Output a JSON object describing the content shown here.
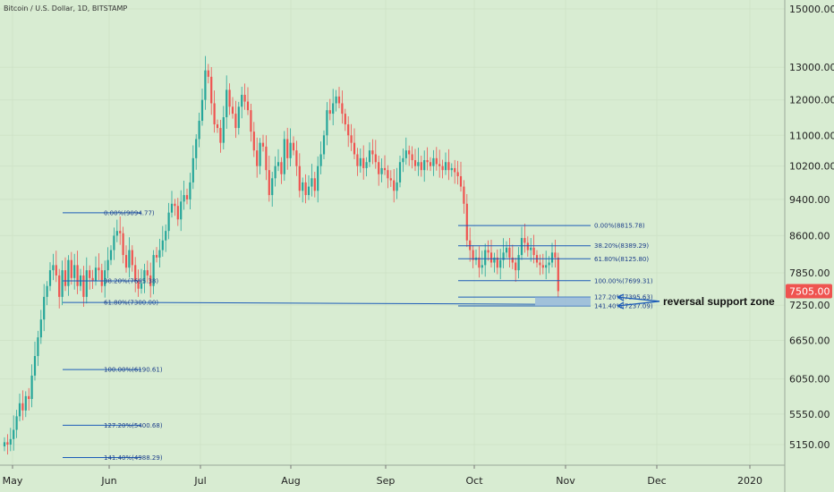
{
  "chart_data": {
    "type": "candlestick",
    "title": "Bitcoin / U.S. Dollar, 1D, BITSTAMP",
    "x_labels": [
      "May",
      "Jun",
      "Jul",
      "Aug",
      "Sep",
      "Oct",
      "Nov",
      "Dec",
      "2020"
    ],
    "y_ticks": [
      "15000.00",
      "13000.00",
      "12000.00",
      "11000.00",
      "10200.00",
      "9400.00",
      "8600.00",
      "7850.00",
      "7250.00",
      "6650.00",
      "6050.00",
      "5550.00",
      "5150.00"
    ],
    "y_scale": "log",
    "y_range": [
      4900,
      15500
    ],
    "last_price": "7505.00",
    "annotation": "reversal support zone",
    "colors": {
      "up": "#26a69a",
      "down": "#ef5350",
      "fib": "#1c5bb8",
      "zone": "#8fb3dc",
      "price_tag": "#ef5350"
    },
    "fib_sets": [
      {
        "levels": [
          {
            "label": "0.00%(9094.77)",
            "price": 9094.77
          },
          {
            "label": "38.20%(7695.38)",
            "price": 7695.38
          },
          {
            "label": "61.80%(7300.00)",
            "price": 7300.0
          },
          {
            "label": "100.00%(6190.61)",
            "price": 6190.61
          },
          {
            "label": "127.20%(5400.68)",
            "price": 5400.68
          },
          {
            "label": "141.40%(4988.29)",
            "price": 4988.29
          }
        ]
      },
      {
        "levels": [
          {
            "label": "0.00%(8815.78)",
            "price": 8815.78
          },
          {
            "label": "38.20%(8389.29)",
            "price": 8389.29
          },
          {
            "label": "61.80%(8125.80)",
            "price": 8125.8
          },
          {
            "label": "100.00%(7699.31)",
            "price": 7699.31
          },
          {
            "label": "127.20%(7395.63)",
            "price": 7395.63
          },
          {
            "label": "141.40%(7237.09)",
            "price": 7237.09
          }
        ]
      }
    ],
    "candles_close": [
      5180,
      5150,
      5220,
      5340,
      5520,
      5700,
      5600,
      5800,
      5760,
      6100,
      6400,
      6700,
      7000,
      7400,
      7600,
      7900,
      8000,
      7800,
      7400,
      7900,
      7600,
      8100,
      7750,
      8000,
      7600,
      7800,
      7400,
      7900,
      7750,
      7700,
      7950,
      7900,
      7600,
      7900,
      8100,
      8300,
      8600,
      8700,
      8650,
      8200,
      7950,
      8300,
      8000,
      7700,
      7550,
      7650,
      7900,
      7800,
      7600,
      8200,
      8150,
      8300,
      8500,
      8700,
      9100,
      9300,
      9250,
      8950,
      9350,
      9500,
      9400,
      9800,
      10400,
      10900,
      11400,
      12000,
      12900,
      12700,
      11900,
      11300,
      11200,
      10800,
      11500,
      12300,
      11800,
      11600,
      11200,
      11800,
      12150,
      11950,
      11700,
      11100,
      10600,
      10200,
      10800,
      10700,
      10100,
      9500,
      9900,
      10200,
      10300,
      10000,
      10900,
      10400,
      10800,
      10600,
      10200,
      9600,
      9800,
      9500,
      9700,
      9900,
      9600,
      10200,
      10500,
      11000,
      11700,
      11600,
      11900,
      12100,
      11900,
      11600,
      11300,
      11000,
      10800,
      10500,
      10200,
      10400,
      10150,
      10300,
      10600,
      10500,
      10300,
      10000,
      10150,
      10100,
      9900,
      9850,
      9600,
      9800,
      10300,
      10400,
      10600,
      10500,
      10350,
      10200,
      10300,
      10100,
      10350,
      10300,
      10200,
      10400,
      10250,
      10200,
      10100,
      10300,
      10100,
      10150,
      10050,
      9950,
      9700,
      9300,
      8500,
      8300,
      8100,
      8150,
      7950,
      8000,
      8300,
      8250,
      8050,
      8150,
      7950,
      8100,
      8250,
      8350,
      8150,
      8050,
      7900,
      8200,
      8550,
      8450,
      8300,
      8350,
      8200,
      8050,
      8000,
      7950,
      8000,
      8050,
      8250,
      8150,
      7505
    ]
  }
}
